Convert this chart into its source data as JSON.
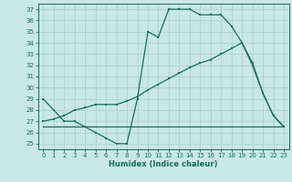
{
  "xlabel": "Humidex (Indice chaleur)",
  "bg_color": "#c8e8e4",
  "line_color": "#1a6b5a",
  "grid_color": "#a8d4ce",
  "xlim": [
    -0.5,
    23.5
  ],
  "ylim": [
    24.5,
    37.5
  ],
  "xticks": [
    0,
    1,
    2,
    3,
    4,
    5,
    6,
    7,
    8,
    9,
    10,
    11,
    12,
    13,
    14,
    15,
    16,
    17,
    18,
    19,
    20,
    21,
    22,
    23
  ],
  "yticks": [
    25,
    26,
    27,
    28,
    29,
    30,
    31,
    32,
    33,
    34,
    35,
    36,
    37
  ],
  "line1_x": [
    0,
    1,
    2,
    3,
    4,
    5,
    6,
    7,
    8,
    9,
    10,
    11,
    12,
    13,
    14,
    15,
    16,
    17,
    18,
    19,
    20,
    21,
    22,
    23
  ],
  "line1_y": [
    29,
    28,
    27,
    27,
    26.5,
    26,
    25.5,
    25,
    25,
    29,
    35,
    34.5,
    37,
    37,
    37,
    36.5,
    36.5,
    36.5,
    35.5,
    34,
    32,
    29.5,
    27.5,
    26.5
  ],
  "line2_x": [
    0,
    1,
    2,
    3,
    4,
    5,
    6,
    7,
    8,
    9,
    10,
    11,
    12,
    13,
    14,
    15,
    16,
    17,
    18,
    19,
    20,
    21,
    22,
    23
  ],
  "line2_y": [
    26.5,
    26.5,
    26.5,
    26.5,
    26.5,
    26.5,
    26.5,
    26.5,
    26.5,
    26.5,
    26.5,
    26.5,
    26.5,
    26.5,
    26.5,
    26.5,
    26.5,
    26.5,
    26.5,
    26.5,
    26.5,
    26.5,
    26.5,
    26.5
  ],
  "line3_x": [
    0,
    1,
    2,
    3,
    4,
    5,
    6,
    7,
    8,
    9,
    10,
    11,
    12,
    13,
    14,
    15,
    16,
    17,
    18,
    19,
    20,
    21,
    22,
    23
  ],
  "line3_y": [
    27,
    27.2,
    27.5,
    28,
    28.2,
    28.5,
    28.5,
    28.5,
    28.8,
    29.2,
    29.8,
    30.3,
    30.8,
    31.3,
    31.8,
    32.2,
    32.5,
    33.0,
    33.5,
    34,
    32.2,
    29.5,
    27.5,
    26.5
  ]
}
